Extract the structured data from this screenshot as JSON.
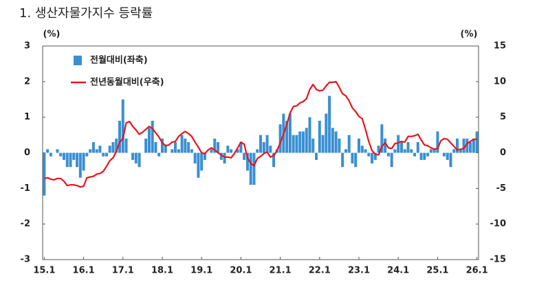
{
  "chart_data": {
    "type": "bar",
    "title": "1. 생산자물가지수 등락률",
    "y_unit": "(%)",
    "y2_unit": "(%)",
    "categories": [
      "15.1",
      null,
      null,
      null,
      null,
      null,
      null,
      null,
      null,
      null,
      null,
      null,
      "16.1",
      null,
      null,
      null,
      null,
      null,
      null,
      null,
      null,
      null,
      null,
      null,
      "17.1",
      null,
      null,
      null,
      null,
      null,
      null,
      null,
      null,
      null,
      null,
      null,
      "18.1",
      null,
      null,
      null,
      null,
      null,
      null,
      null,
      null,
      null,
      null,
      null,
      "19.1",
      null,
      null,
      null,
      null,
      null,
      null,
      null,
      null,
      null,
      null,
      null,
      "20.1",
      null,
      null,
      null,
      null,
      null,
      null,
      null,
      null,
      null,
      null,
      null,
      "21.1",
      null,
      null,
      null,
      null,
      null,
      null,
      null,
      null,
      null,
      null,
      null,
      "22.1",
      null,
      null,
      null,
      null,
      null,
      null,
      null,
      null,
      null,
      null,
      null,
      "23.1",
      null,
      null,
      null,
      null,
      null,
      null,
      null,
      null,
      null,
      null,
      null,
      "24.1",
      null,
      null,
      null,
      null,
      null,
      null,
      null,
      null,
      null,
      null,
      null,
      "25.1",
      null,
      null,
      null,
      null,
      null,
      null,
      null,
      null,
      null,
      null,
      null,
      "26.1"
    ],
    "series": [
      {
        "name": "전월대비(좌축)",
        "type": "bar",
        "color": "#3a8fd2",
        "values": [
          -1.2,
          0.1,
          -0.1,
          0,
          0.1,
          -0.1,
          -0.2,
          -0.4,
          -0.4,
          -0.2,
          -0.4,
          -0.7,
          -0.5,
          -0.1,
          0.1,
          0.3,
          0.1,
          0.2,
          -0.1,
          -0.1,
          0.2,
          0.3,
          0.4,
          0.9,
          1.5,
          0.4,
          0,
          -0.2,
          -0.3,
          -0.4,
          0,
          0.4,
          0.7,
          0.9,
          0.3,
          -0.1,
          0.4,
          0.2,
          0,
          0.1,
          0.3,
          0.1,
          0.5,
          0.4,
          0.3,
          0.1,
          -0.3,
          -0.7,
          -0.5,
          -0.2,
          0,
          0.1,
          0.4,
          0.3,
          -0.2,
          -0.3,
          0.2,
          0.1,
          0,
          0.1,
          0.3,
          -0.2,
          -0.5,
          -0.9,
          -0.9,
          0.1,
          0.5,
          0.3,
          0.5,
          0.2,
          -0.4,
          0.1,
          0.8,
          1.1,
          0.9,
          1.1,
          0.5,
          0.5,
          0.6,
          0.6,
          0.7,
          1.0,
          0.4,
          -0.2,
          0.9,
          0.5,
          1.1,
          1.6,
          0.7,
          0.6,
          0.4,
          -0.4,
          0.1,
          0.5,
          -0.3,
          -0.4,
          0.4,
          0.2,
          0.1,
          -0.1,
          -0.3,
          -0.2,
          0.2,
          0.8,
          0.4,
          -0.1,
          -0.4,
          0.1,
          0.5,
          0.3,
          0.1,
          0.3,
          0.1,
          -0.1,
          0.3,
          -0.2,
          -0.2,
          -0.1,
          0.1,
          0.1,
          0.6,
          0,
          -0.1,
          -0.2,
          -0.4,
          0.1,
          0.4,
          0.1,
          0.4,
          0.4,
          0.3,
          0.4,
          0.6
        ]
      },
      {
        "name": "전년동월대비(우축)",
        "type": "line",
        "axis": "y2",
        "color": "#e8141a",
        "values": [
          -3.6,
          -3.5,
          -3.7,
          -3.8,
          -3.6,
          -3.6,
          -4.0,
          -4.6,
          -4.5,
          -4.5,
          -4.6,
          -4.8,
          -4.7,
          -3.5,
          -3.4,
          -3.3,
          -3.0,
          -2.9,
          -2.6,
          -1.9,
          -1.1,
          -0.7,
          0.2,
          1.5,
          2.0,
          4.2,
          4.4,
          3.7,
          3.2,
          2.6,
          2.9,
          3.3,
          3.7,
          3.4,
          2.8,
          2.2,
          1.4,
          1.0,
          1.1,
          1.5,
          1.6,
          2.3,
          2.7,
          3.0,
          2.7,
          2.3,
          1.5,
          0.8,
          0.0,
          -0.1,
          0.4,
          0.7,
          0.4,
          0.0,
          -0.3,
          -0.6,
          -0.6,
          -0.7,
          -0.1,
          0.7,
          1.5,
          1.2,
          -0.7,
          -1.5,
          -1.8,
          -0.8,
          -0.5,
          -0.1,
          0.1,
          -0.6,
          -0.4,
          0.3,
          1.4,
          2.6,
          4.0,
          5.6,
          6.5,
          6.6,
          7.0,
          7.2,
          7.6,
          8.9,
          9.6,
          8.9,
          8.7,
          8.8,
          9.4,
          9.9,
          9.9,
          10.0,
          9.2,
          8.3,
          8.0,
          7.3,
          6.3,
          5.8,
          5.1,
          4.8,
          3.3,
          1.6,
          0.3,
          -0.2,
          -0.3,
          0.9,
          1.4,
          0.7,
          0.6,
          1.3,
          1.4,
          1.6,
          1.5,
          2.3,
          2.3,
          2.4,
          2.6,
          1.8,
          1.1,
          1.0,
          0.7,
          0.5,
          0.6,
          1.7,
          2.0,
          1.9,
          1.4,
          0.9,
          0.4,
          0.5,
          0.6,
          1.3,
          1.6,
          1.9,
          1.9
        ]
      }
    ],
    "ylim": [
      -3,
      3
    ],
    "yticks": [
      -3,
      -2,
      -1,
      0,
      1,
      2,
      3
    ],
    "y2lim": [
      -15,
      15
    ],
    "y2ticks": [
      -15,
      -10,
      -5,
      0,
      5,
      10,
      15
    ],
    "grid": false,
    "legend": "upper left"
  }
}
